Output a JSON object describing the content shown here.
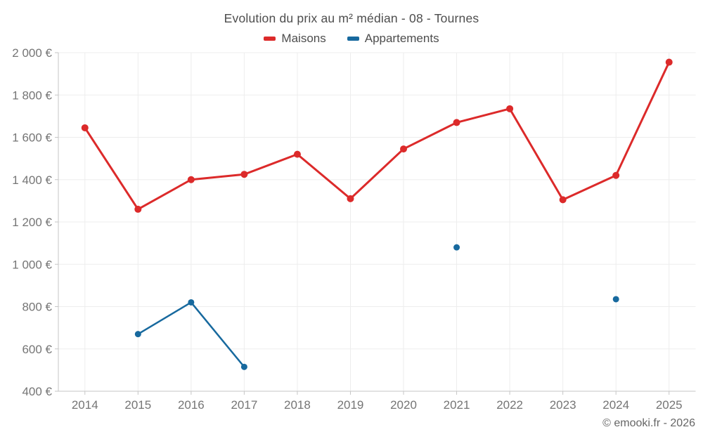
{
  "watermark": "© emooki.fr - 2026",
  "colors": {
    "background": "#ffffff",
    "grid": "#ededed",
    "axis": "#c6c6c6",
    "tick_label": "#757575",
    "title_text": "#4d4d4d",
    "watermark_text": "#666666",
    "maisons": "#dc2a2a",
    "appartements": "#17699e"
  },
  "chart_data": {
    "type": "line",
    "title": "Evolution du prix au m² médian - 08 - Tournes",
    "x": [
      2014,
      2015,
      2016,
      2017,
      2018,
      2019,
      2020,
      2021,
      2022,
      2023,
      2024,
      2025
    ],
    "xlabel": "",
    "ylabel": "",
    "ylim": [
      400,
      2000
    ],
    "ytick_step": 200,
    "ytick_suffix": " €",
    "grid": true,
    "legend_position": "top",
    "series": [
      {
        "name": "Maisons",
        "color": "#dc2a2a",
        "values": [
          1645,
          1260,
          1400,
          1425,
          1520,
          1310,
          1545,
          1670,
          1735,
          1305,
          1420,
          1955
        ]
      },
      {
        "name": "Appartements",
        "color": "#17699e",
        "values": [
          null,
          670,
          820,
          515,
          null,
          null,
          null,
          1080,
          null,
          null,
          835,
          null
        ]
      }
    ]
  }
}
